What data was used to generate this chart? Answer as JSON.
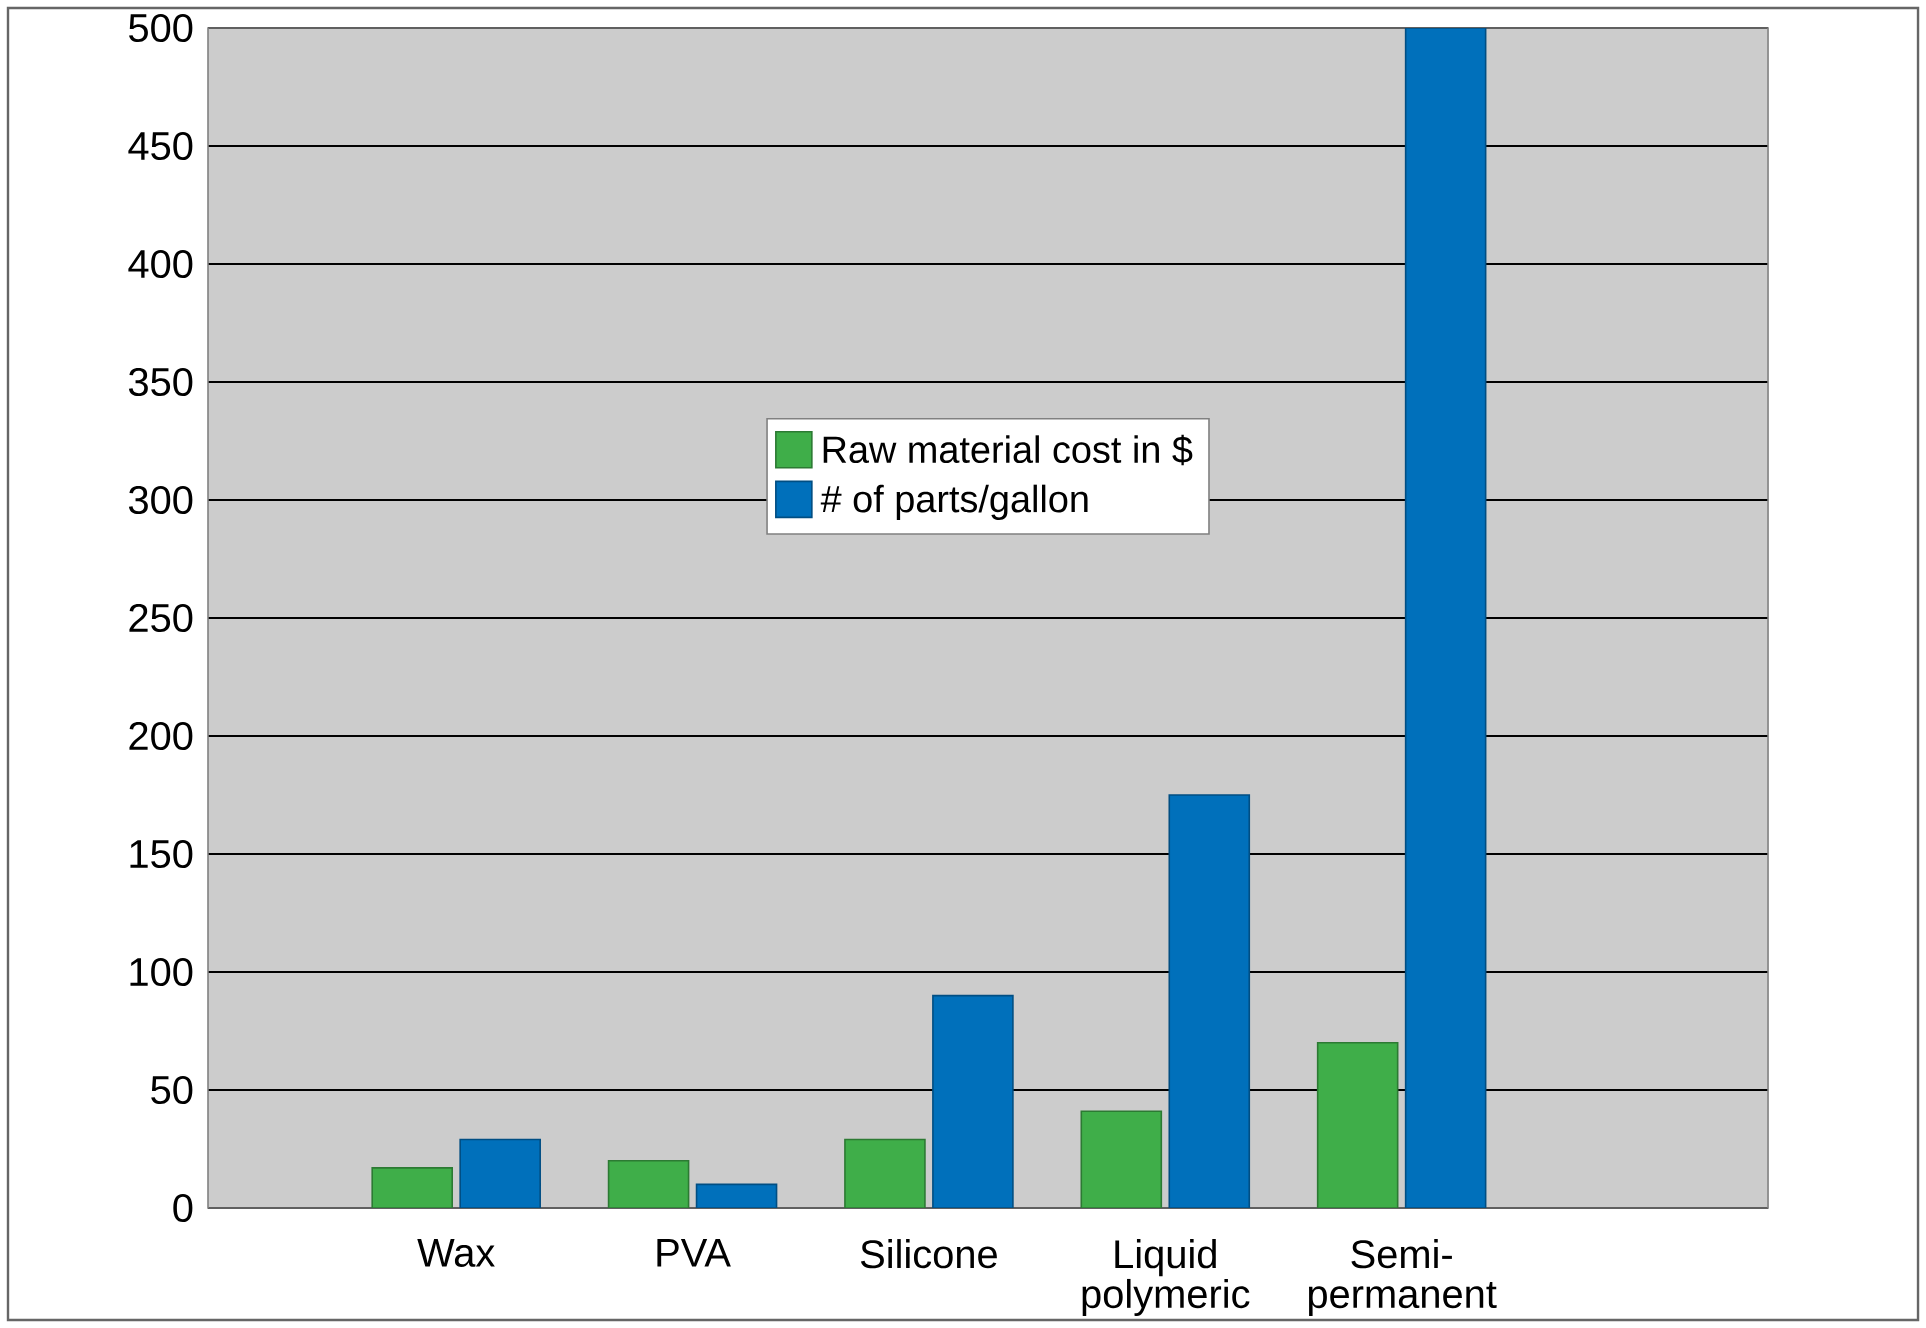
{
  "chart_data": {
    "type": "bar",
    "categories": [
      "Wax",
      "PVA",
      "Silicone",
      "Liquid polymeric",
      "Semi-permanent"
    ],
    "series": [
      {
        "name": "Raw material cost in $",
        "color": "#3fae49",
        "values": [
          17,
          20,
          29,
          41,
          70
        ]
      },
      {
        "name": "# of parts/gallon",
        "color": "#0070bb",
        "values": [
          29,
          10,
          90,
          175,
          500
        ]
      }
    ],
    "ylim": [
      0,
      500
    ],
    "yticks": [
      0,
      50,
      100,
      150,
      200,
      250,
      300,
      350,
      400,
      450,
      500
    ],
    "grid": "y",
    "legend": "center"
  }
}
